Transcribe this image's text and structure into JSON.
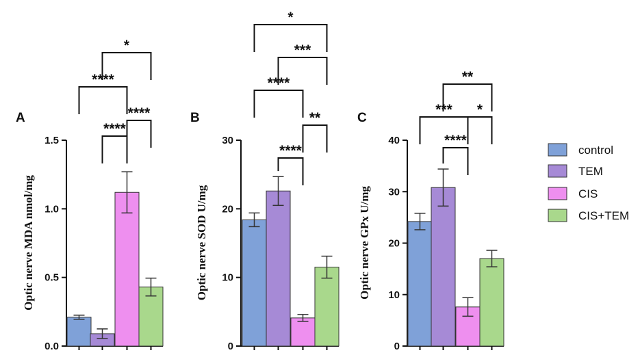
{
  "colors": {
    "control": "#7fa1d8",
    "TEM": "#a68ad6",
    "CIS": "#ee8fef",
    "CIS+TEM": "#a9d88c"
  },
  "legend": [
    "control",
    "TEM",
    "CIS",
    "CIS+TEM"
  ],
  "chart_data": [
    {
      "type": "bar",
      "panel": "A",
      "ylabel": "Optic nerve MDA nmol/mg",
      "ylim": [
        0,
        1.5
      ],
      "yticks": [
        0.0,
        0.5,
        1.0,
        1.5
      ],
      "ytick_labels": [
        "0.0",
        "0.5",
        "1.0",
        "1.5"
      ],
      "categories": [
        "control",
        "TEM",
        "CIS",
        "CIS+TEM"
      ],
      "values": [
        0.21,
        0.09,
        1.12,
        0.43
      ],
      "errors": [
        0.015,
        0.035,
        0.15,
        0.065
      ],
      "significance": [
        {
          "from": 1,
          "to": 2,
          "label": "****"
        },
        {
          "from": 2,
          "to": 3,
          "label": "****"
        },
        {
          "from": 0,
          "to": 2,
          "label": "****"
        },
        {
          "from": 1,
          "to": 3,
          "label": "*"
        }
      ]
    },
    {
      "type": "bar",
      "panel": "B",
      "ylabel": "Optic nerve SOD U/mg",
      "ylim": [
        0,
        30
      ],
      "yticks": [
        0,
        10,
        20,
        30
      ],
      "ytick_labels": [
        "0",
        "10",
        "20",
        "30"
      ],
      "categories": [
        "control",
        "TEM",
        "CIS",
        "CIS+TEM"
      ],
      "values": [
        18.4,
        22.6,
        4.1,
        11.5
      ],
      "errors": [
        1.0,
        2.1,
        0.5,
        1.6
      ],
      "significance": [
        {
          "from": 1,
          "to": 2,
          "label": "****"
        },
        {
          "from": 2,
          "to": 3,
          "label": "**"
        },
        {
          "from": 0,
          "to": 2,
          "label": "****"
        },
        {
          "from": 1,
          "to": 3,
          "label": "***"
        },
        {
          "from": 0,
          "to": 3,
          "label": "*"
        }
      ]
    },
    {
      "type": "bar",
      "panel": "C",
      "ylabel": "Optic nerve GPx U/mg",
      "ylim": [
        0,
        40
      ],
      "yticks": [
        0,
        10,
        20,
        30,
        40
      ],
      "ytick_labels": [
        "0",
        "10",
        "20",
        "30",
        "40"
      ],
      "categories": [
        "control",
        "TEM",
        "CIS",
        "CIS+TEM"
      ],
      "values": [
        24.2,
        30.8,
        7.6,
        17.0
      ],
      "errors": [
        1.6,
        3.6,
        1.8,
        1.6
      ],
      "significance": [
        {
          "from": 1,
          "to": 2,
          "label": "****"
        },
        {
          "from": 0,
          "to": 2,
          "label": "***"
        },
        {
          "from": 2,
          "to": 3,
          "label": "*"
        },
        {
          "from": 1,
          "to": 3,
          "label": "**"
        }
      ]
    }
  ]
}
